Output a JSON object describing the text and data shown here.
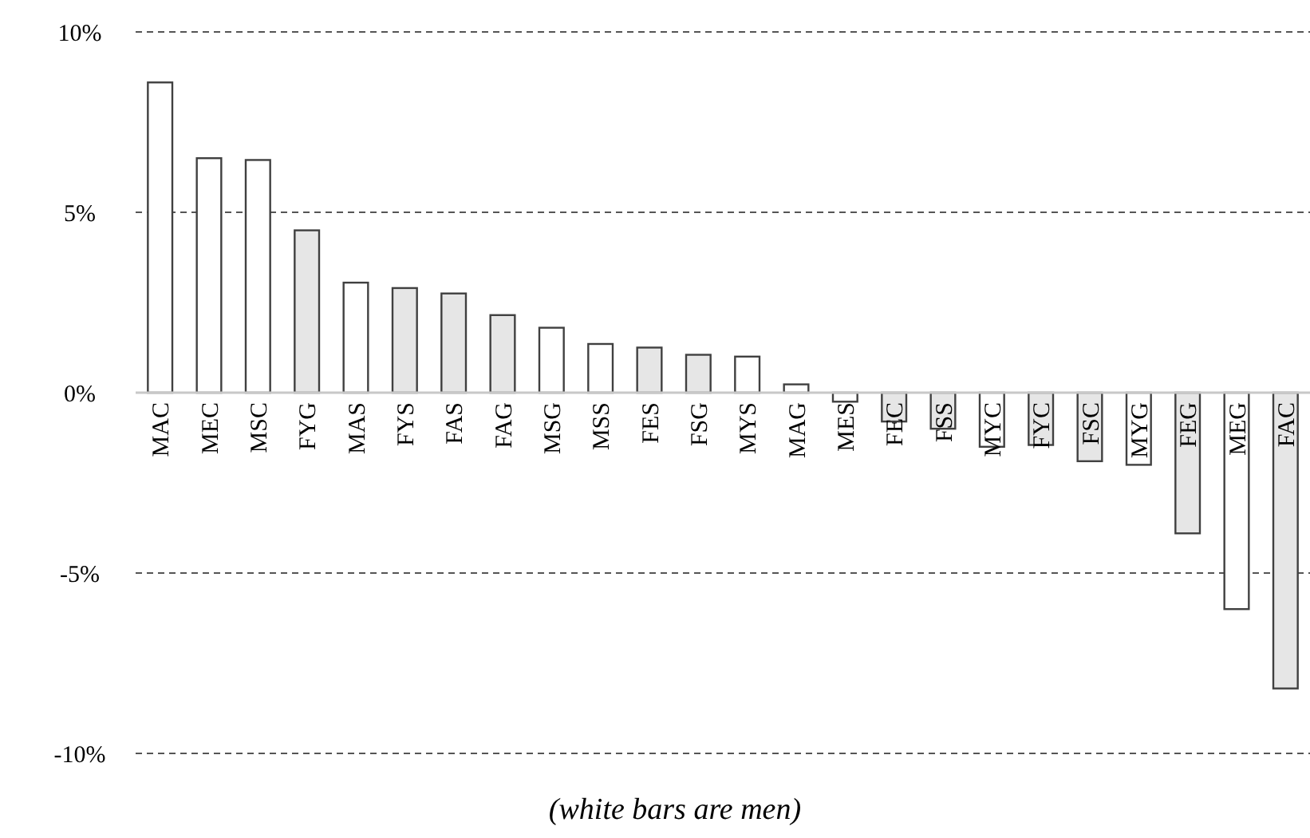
{
  "chart_data": {
    "type": "bar",
    "categories": [
      "MAC",
      "MEC",
      "MSC",
      "FYG",
      "MAS",
      "FYS",
      "FAS",
      "FAG",
      "MSG",
      "MSS",
      "FES",
      "FSG",
      "MYS",
      "MAG",
      "MES",
      "FEC",
      "FSS",
      "MYC",
      "FYC",
      "FSC",
      "MYG",
      "FEG",
      "MEG",
      "FAC"
    ],
    "values": [
      8.6,
      6.5,
      6.45,
      4.5,
      3.05,
      2.9,
      2.75,
      2.15,
      1.8,
      1.35,
      1.25,
      1.05,
      1.0,
      0.23,
      -0.25,
      -0.8,
      -1.0,
      -1.5,
      -1.45,
      -1.9,
      -2.0,
      -3.9,
      -6.0,
      -8.2
    ],
    "colors": [
      "#ffffff",
      "#ffffff",
      "#ffffff",
      "#e6e6e6",
      "#ffffff",
      "#e6e6e6",
      "#e6e6e6",
      "#e6e6e6",
      "#ffffff",
      "#ffffff",
      "#e6e6e6",
      "#e6e6e6",
      "#ffffff",
      "#ffffff",
      "#ffffff",
      "#e6e6e6",
      "#e6e6e6",
      "#ffffff",
      "#e6e6e6",
      "#e6e6e6",
      "#ffffff",
      "#e6e6e6",
      "#ffffff",
      "#e6e6e6"
    ],
    "ylim": [
      -10,
      10
    ],
    "yticks": [
      {
        "value": 10,
        "label": "10%"
      },
      {
        "value": 5,
        "label": "5%"
      },
      {
        "value": 0,
        "label": "0%"
      },
      {
        "value": -5,
        "label": "-5%"
      },
      {
        "value": -10,
        "label": "-10%"
      }
    ],
    "grid": "y",
    "annotations": [
      "(white bars are men)"
    ]
  }
}
